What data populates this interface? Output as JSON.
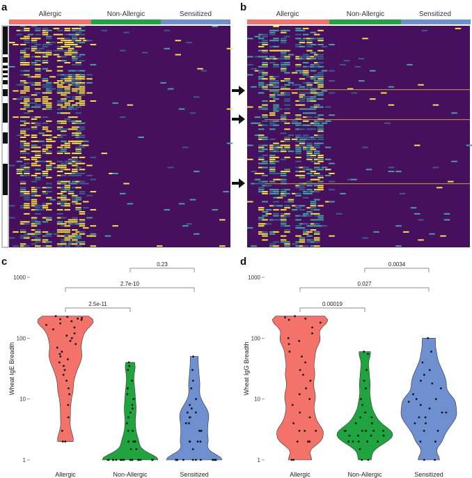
{
  "panel_labels": [
    "a",
    "b",
    "c",
    "d"
  ],
  "colors": {
    "Allergic": "#f3736b",
    "Non-Allergic": "#20a43f",
    "Sensitized": "#6e8fd0",
    "heat_bg": "#46105f",
    "heat_yellow": "#f4e33a",
    "heat_teal": "#3fa5a0",
    "heat_blue": "#35608d"
  },
  "heatmaps": [
    {
      "panel": "a",
      "groups": [
        "Allergic",
        "Non-Allergic",
        "Sensitized"
      ],
      "side_bar": true,
      "arrows": 0
    },
    {
      "panel": "b",
      "groups": [
        "Allergic",
        "Non-Allergic",
        "Sensitized"
      ],
      "side_bar": false,
      "arrows": 3
    }
  ],
  "chart_data": [
    {
      "panel": "c",
      "type": "violin",
      "ylabel": "Wheat IgE Breadth",
      "xlabel": "",
      "yscale": "log10",
      "ylim": [
        1,
        1000
      ],
      "yticks": [
        "1",
        "10",
        "100",
        "1000"
      ],
      "categories": [
        "Allergic",
        "Non-Allergic",
        "Sensitized"
      ],
      "series": [
        {
          "name": "Allergic",
          "points": [
            230,
            225,
            215,
            210,
            205,
            200,
            190,
            175,
            165,
            150,
            140,
            120,
            110,
            100,
            90,
            80,
            70,
            60,
            55,
            50,
            45,
            40,
            35,
            30,
            25,
            20,
            15,
            12,
            8,
            5,
            3,
            2,
            2
          ]
        },
        {
          "name": "Non-Allergic",
          "points": [
            40,
            35,
            30,
            20,
            15,
            12,
            10,
            8,
            7,
            6,
            5,
            4,
            3,
            3,
            2,
            2,
            2,
            2,
            1.5,
            1.5,
            1,
            1,
            1,
            1,
            1,
            1,
            1,
            1,
            1,
            1,
            1,
            1,
            1,
            1,
            1,
            1,
            1,
            1,
            1,
            1
          ]
        },
        {
          "name": "Sensitized",
          "points": [
            50,
            30,
            20,
            15,
            10,
            8,
            7,
            6,
            6,
            5,
            5,
            4,
            4,
            3,
            3,
            3,
            2,
            2,
            2,
            2,
            1.5,
            1,
            1,
            1,
            1,
            1,
            1,
            1,
            1,
            1,
            1,
            1
          ]
        }
      ],
      "comparisons": [
        {
          "from": "Allergic",
          "to": "Non-Allergic",
          "label": "2.5e-11"
        },
        {
          "from": "Allergic",
          "to": "Sensitized",
          "label": "2.7e-10"
        },
        {
          "from": "Non-Allergic",
          "to": "Sensitized",
          "label": "0.23"
        }
      ]
    },
    {
      "panel": "d",
      "type": "violin",
      "ylabel": "Wheat IgG Breadth",
      "xlabel": "",
      "yscale": "log10",
      "ylim": [
        1,
        1000
      ],
      "yticks": [
        "1",
        "10",
        "100",
        "1000"
      ],
      "categories": [
        "Allergic",
        "Non-Allergic",
        "Sensitized"
      ],
      "series": [
        {
          "name": "Allergic",
          "points": [
            230,
            220,
            210,
            200,
            180,
            150,
            120,
            100,
            90,
            80,
            60,
            50,
            40,
            30,
            25,
            20,
            15,
            12,
            10,
            8,
            6,
            5,
            4,
            3,
            3,
            3,
            2,
            2,
            2,
            1,
            1
          ]
        },
        {
          "name": "Non-Allergic",
          "points": [
            60,
            55,
            30,
            20,
            15,
            10,
            8,
            6,
            5,
            5,
            4,
            4,
            3,
            3,
            3,
            3,
            3,
            3,
            2.5,
            2.5,
            2.5,
            2.5,
            2,
            2,
            2,
            2,
            2,
            1.5,
            1,
            1
          ]
        },
        {
          "name": "Sensitized",
          "points": [
            100,
            60,
            40,
            30,
            25,
            20,
            18,
            15,
            12,
            10,
            10,
            9,
            8,
            7,
            6,
            6,
            5,
            5,
            4,
            4,
            3,
            3,
            2,
            2,
            1,
            1
          ]
        }
      ],
      "comparisons": [
        {
          "from": "Allergic",
          "to": "Non-Allergic",
          "label": "0.00019"
        },
        {
          "from": "Allergic",
          "to": "Sensitized",
          "label": "0.027"
        },
        {
          "from": "Non-Allergic",
          "to": "Sensitized",
          "label": "0.0034"
        }
      ]
    }
  ]
}
